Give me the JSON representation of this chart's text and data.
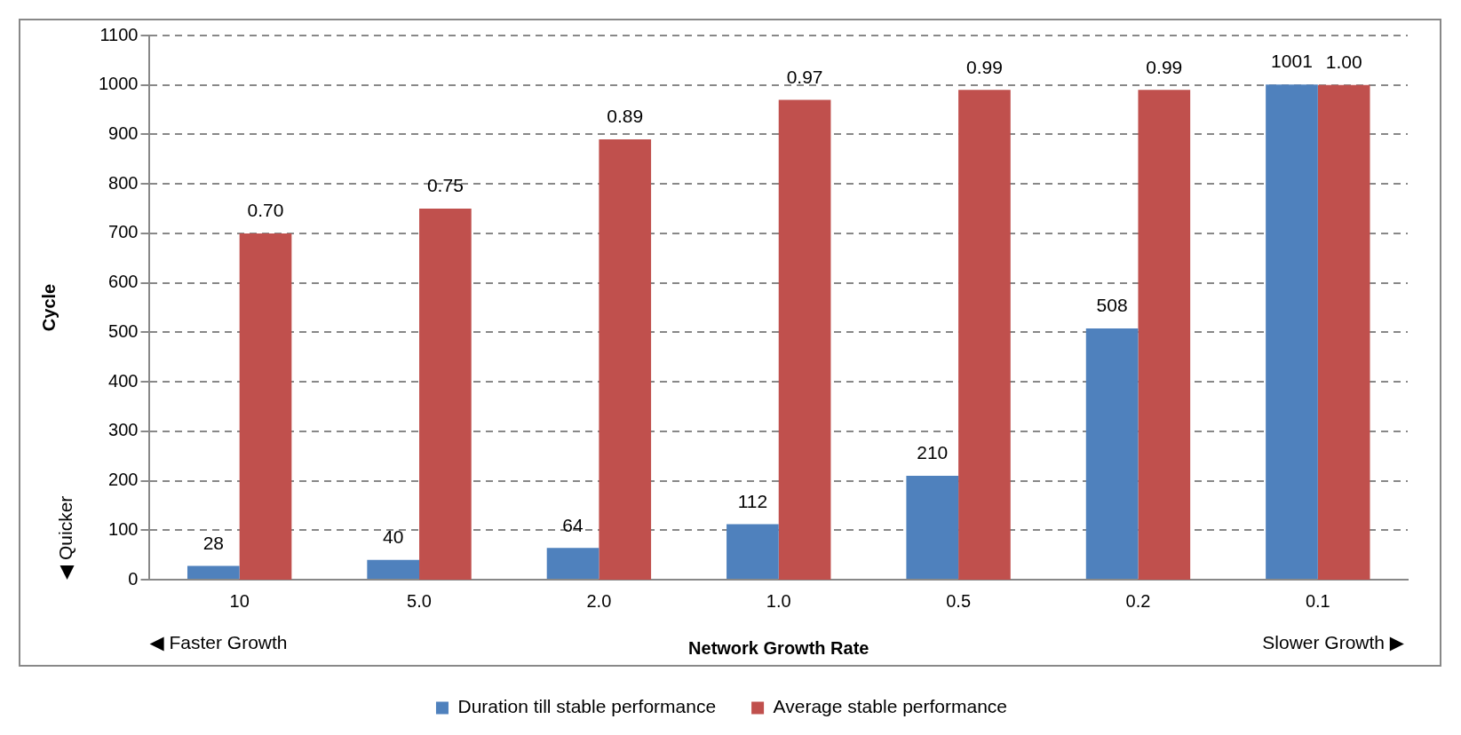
{
  "chart_data": {
    "type": "bar",
    "xlabel": "Network Growth Rate",
    "ylabel": "Cycle",
    "categories": [
      "10",
      "5.0",
      "2.0",
      "1.0",
      "0.5",
      "0.2",
      "0.1"
    ],
    "series": [
      {
        "name": "Duration till stable performance",
        "color": "#4f81bd",
        "values": [
          28,
          40,
          64,
          112,
          210,
          508,
          1001
        ],
        "value_labels": [
          "28",
          "40",
          "64",
          "112",
          "210",
          "508",
          "1001"
        ]
      },
      {
        "name": "Average stable performance",
        "color": "#c0504d",
        "axis": "y2",
        "values": [
          0.7,
          0.75,
          0.89,
          0.97,
          0.99,
          0.99,
          1.0
        ],
        "value_labels": [
          "0.70",
          "0.75",
          "0.89",
          "0.97",
          "0.99",
          "0.99",
          "1.00"
        ]
      }
    ],
    "ylim": [
      0,
      1100
    ],
    "yticks": [
      0,
      100,
      200,
      300,
      400,
      500,
      600,
      700,
      800,
      900,
      1000,
      1100
    ],
    "y2lim": [
      0,
      1.1
    ],
    "grid": "y",
    "legend": "bottom",
    "annotations": [
      "◀ Faster Growth",
      "Slower Growth ▶",
      "◀ Quicker"
    ]
  }
}
